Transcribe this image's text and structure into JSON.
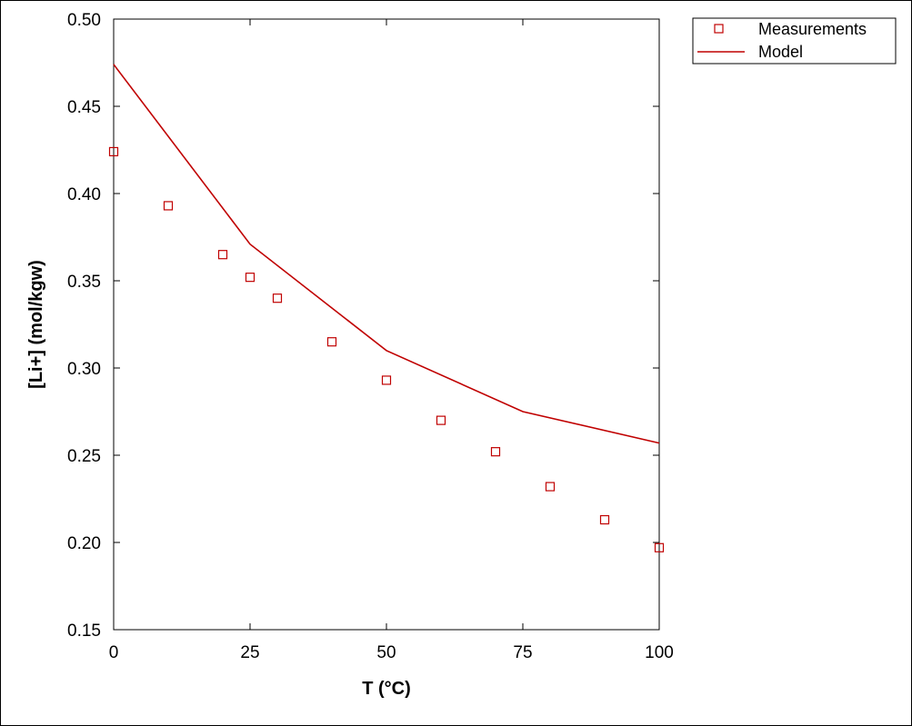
{
  "chart_data": {
    "type": "scatter",
    "title": "",
    "xlabel": "T (°C)",
    "ylabel": "[Li+] (mol/kgw)",
    "xlim": [
      0,
      100
    ],
    "ylim": [
      0.15,
      0.5
    ],
    "x_ticks": [
      0,
      25,
      50,
      75,
      100
    ],
    "y_ticks": [
      0.15,
      0.2,
      0.25,
      0.3,
      0.35,
      0.4,
      0.45,
      0.5
    ],
    "x_tick_labels": [
      "0",
      "25",
      "50",
      "75",
      "100"
    ],
    "y_tick_labels": [
      "0.15",
      "0.20",
      "0.25",
      "0.30",
      "0.35",
      "0.40",
      "0.45",
      "0.50"
    ],
    "grid": false,
    "legend_position": "outside-top-right",
    "series": [
      {
        "name": "Measurements",
        "kind": "markers",
        "marker": "open-square",
        "color": "#c00000",
        "x": [
          0,
          10,
          20,
          25,
          30,
          40,
          50,
          60,
          70,
          80,
          90,
          100
        ],
        "y": [
          0.424,
          0.393,
          0.365,
          0.352,
          0.34,
          0.315,
          0.293,
          0.27,
          0.252,
          0.232,
          0.213,
          0.197
        ]
      },
      {
        "name": "Model",
        "kind": "line",
        "color": "#c00000",
        "x": [
          0,
          25,
          50,
          75,
          100
        ],
        "y": [
          0.474,
          0.371,
          0.31,
          0.275,
          0.257
        ]
      }
    ]
  }
}
